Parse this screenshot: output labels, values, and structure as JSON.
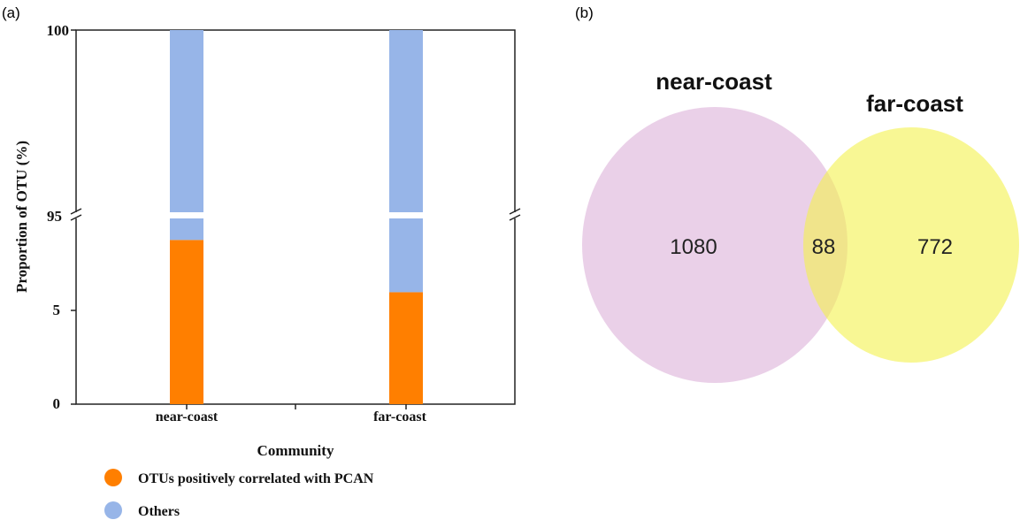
{
  "panels": {
    "a_label": "(a)",
    "b_label": "(b)"
  },
  "chart_data": [
    {
      "type": "bar",
      "stacked": true,
      "broken_axis": true,
      "xlabel": "Community",
      "ylabel": "Proportion of OTU (%)",
      "categories": [
        "near-coast",
        "far-coast"
      ],
      "y_ticks": [
        "0",
        "5",
        "95",
        "100"
      ],
      "series": [
        {
          "name": "OTUs positively correlated with PCAN",
          "color": "#ff7f00",
          "values": [
            8.8,
            6.0
          ]
        },
        {
          "name": "Others",
          "color": "#97b5e8",
          "values": [
            91.2,
            94.0
          ]
        }
      ],
      "legend_position": "bottom-left"
    },
    {
      "type": "venn",
      "sets": [
        {
          "name": "near-coast",
          "color": "#dcb0d8",
          "only": "1080"
        },
        {
          "name": "far-coast",
          "color": "#f4f24d",
          "only": "772"
        }
      ],
      "intersection": "88"
    }
  ]
}
